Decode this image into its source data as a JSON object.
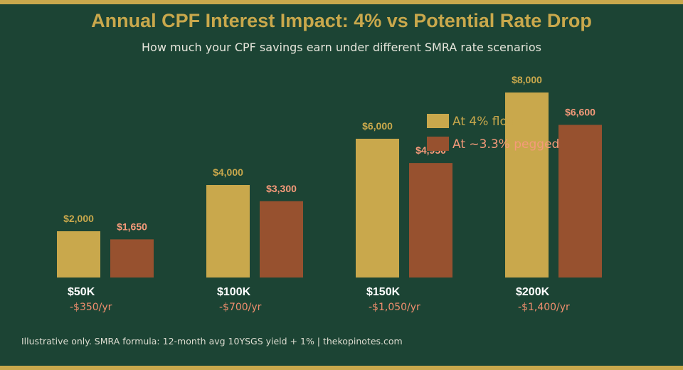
{
  "title": "Annual CPF Interest Impact: 4% vs Potential Rate Drop",
  "subtitle": "How much your CPF savings earn under different SMRA rate scenarios",
  "footnote": "Illustrative only. SMRA formula: 12-month avg 10YSGS yield + 1%  |  thekopinotes.com",
  "colors": {
    "background": "#1c4434",
    "accent": "#c9a84c",
    "series_floor": "#c9a84c",
    "series_pegged": "#97512f",
    "value_label_pegged": "#f59a7a",
    "diff_text": "#f08e6e",
    "category_text": "#ffffff"
  },
  "chart_data": {
    "type": "bar",
    "categories": [
      "$50K",
      "$100K",
      "$150K",
      "$200K"
    ],
    "series": [
      {
        "name": "At 4% floor",
        "values": [
          2000,
          4000,
          6000,
          8000
        ],
        "labels": [
          "$2,000",
          "$4,000",
          "$6,000",
          "$8,000"
        ]
      },
      {
        "name": "At ~3.3% pegged",
        "values": [
          1650,
          3300,
          4950,
          6600
        ],
        "labels": [
          "$1,650",
          "$3,300",
          "$4,950",
          "$6,600"
        ]
      }
    ],
    "differences": [
      "-$350/yr",
      "-$700/yr",
      "-$1,050/yr",
      "-$1,400/yr"
    ],
    "ylim": [
      0,
      8000
    ],
    "legend_position": "top-right",
    "grid": false
  }
}
